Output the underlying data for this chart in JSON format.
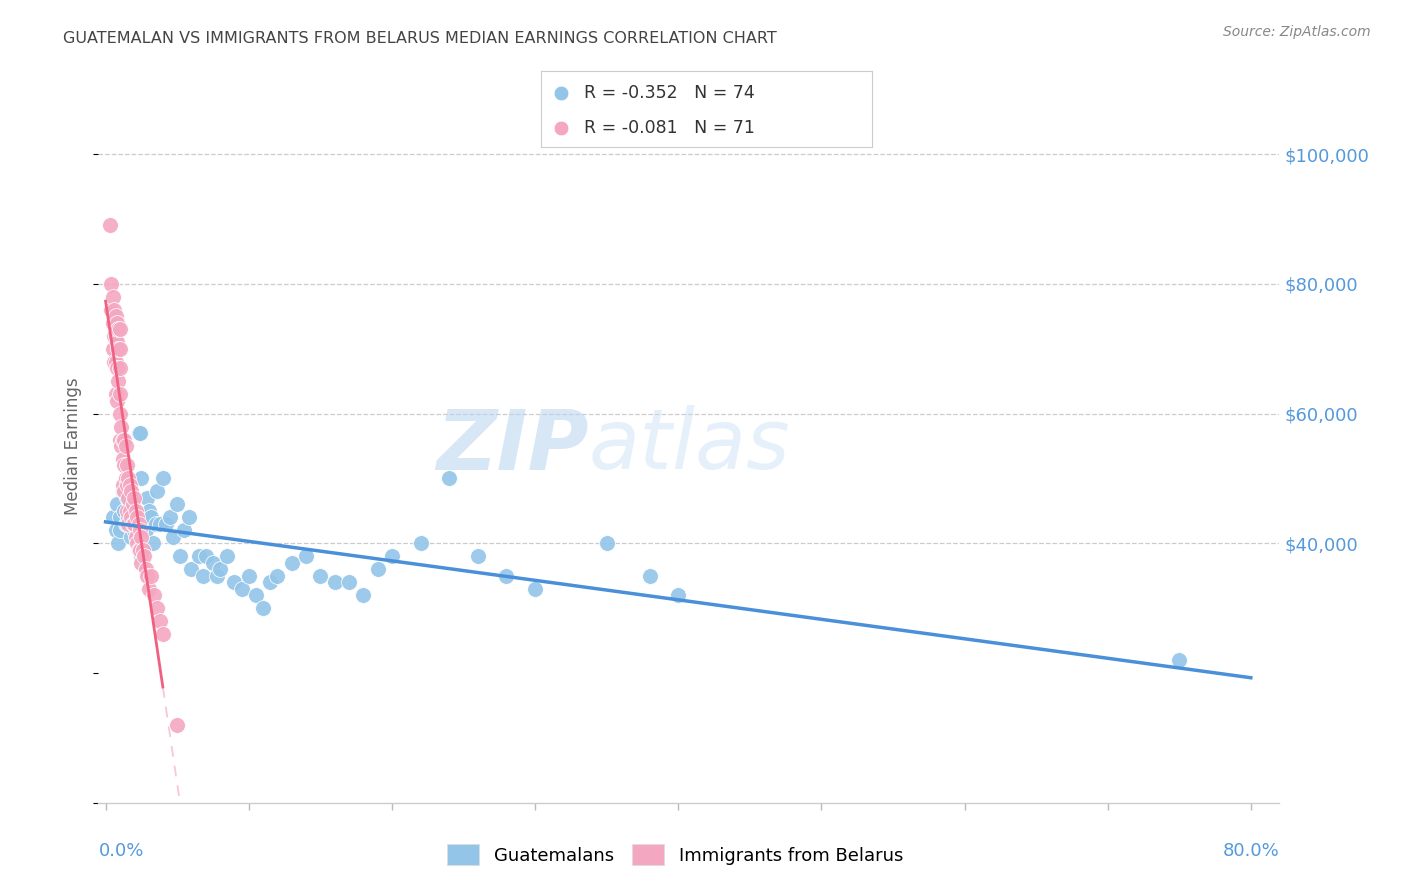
{
  "title": "GUATEMALAN VS IMMIGRANTS FROM BELARUS MEDIAN EARNINGS CORRELATION CHART",
  "source": "Source: ZipAtlas.com",
  "ylabel": "Median Earnings",
  "y_tick_values": [
    40000,
    60000,
    80000,
    100000
  ],
  "ylim": [
    0,
    110000
  ],
  "xlim": [
    -0.005,
    0.82
  ],
  "legend_blue_r": "-0.352",
  "legend_blue_n": "74",
  "legend_pink_r": "-0.081",
  "legend_pink_n": "71",
  "watermark_zip": "ZIP",
  "watermark_atlas": "atlas",
  "background_color": "#ffffff",
  "grid_color": "#cccccc",
  "blue_color": "#92C5E8",
  "pink_color": "#F4A7C0",
  "blue_line_color": "#4A90D9",
  "pink_line_color": "#F06080",
  "title_color": "#444444",
  "source_color": "#888888",
  "axis_label_color": "#5599DD",
  "guatemalans_x": [
    0.005,
    0.007,
    0.008,
    0.009,
    0.01,
    0.01,
    0.012,
    0.013,
    0.014,
    0.015,
    0.015,
    0.016,
    0.017,
    0.018,
    0.018,
    0.02,
    0.02,
    0.021,
    0.022,
    0.022,
    0.023,
    0.024,
    0.024,
    0.025,
    0.025,
    0.027,
    0.028,
    0.029,
    0.03,
    0.032,
    0.033,
    0.035,
    0.036,
    0.038,
    0.04,
    0.042,
    0.045,
    0.047,
    0.05,
    0.052,
    0.055,
    0.058,
    0.06,
    0.065,
    0.068,
    0.07,
    0.075,
    0.078,
    0.08,
    0.085,
    0.09,
    0.095,
    0.1,
    0.105,
    0.11,
    0.115,
    0.12,
    0.13,
    0.14,
    0.15,
    0.16,
    0.17,
    0.18,
    0.19,
    0.2,
    0.22,
    0.24,
    0.26,
    0.28,
    0.3,
    0.35,
    0.38,
    0.4,
    0.75
  ],
  "guatemalans_y": [
    44000,
    42000,
    46000,
    40000,
    44000,
    42000,
    48000,
    45000,
    43000,
    47000,
    43000,
    44000,
    46000,
    43000,
    41000,
    45000,
    42000,
    44000,
    43000,
    41000,
    57000,
    57000,
    43000,
    50000,
    38000,
    44000,
    42000,
    47000,
    45000,
    44000,
    40000,
    43000,
    48000,
    43000,
    50000,
    43000,
    44000,
    41000,
    46000,
    38000,
    42000,
    44000,
    36000,
    38000,
    35000,
    38000,
    37000,
    35000,
    36000,
    38000,
    34000,
    33000,
    35000,
    32000,
    30000,
    34000,
    35000,
    37000,
    38000,
    35000,
    34000,
    34000,
    32000,
    36000,
    38000,
    40000,
    50000,
    38000,
    35000,
    33000,
    40000,
    35000,
    32000,
    22000
  ],
  "belarus_x": [
    0.003,
    0.004,
    0.004,
    0.005,
    0.005,
    0.005,
    0.006,
    0.006,
    0.006,
    0.007,
    0.007,
    0.007,
    0.007,
    0.008,
    0.008,
    0.008,
    0.008,
    0.009,
    0.009,
    0.009,
    0.01,
    0.01,
    0.01,
    0.01,
    0.01,
    0.01,
    0.011,
    0.011,
    0.012,
    0.012,
    0.012,
    0.013,
    0.013,
    0.013,
    0.014,
    0.014,
    0.015,
    0.015,
    0.015,
    0.016,
    0.016,
    0.016,
    0.017,
    0.017,
    0.018,
    0.018,
    0.019,
    0.019,
    0.02,
    0.02,
    0.021,
    0.021,
    0.022,
    0.022,
    0.023,
    0.023,
    0.024,
    0.024,
    0.025,
    0.025,
    0.026,
    0.027,
    0.028,
    0.029,
    0.03,
    0.032,
    0.034,
    0.036,
    0.038,
    0.04,
    0.05
  ],
  "belarus_y": [
    89000,
    80000,
    76000,
    78000,
    74000,
    70000,
    76000,
    72000,
    68000,
    75000,
    72000,
    68000,
    63000,
    74000,
    71000,
    67000,
    62000,
    73000,
    70000,
    65000,
    73000,
    70000,
    67000,
    63000,
    60000,
    56000,
    58000,
    55000,
    56000,
    53000,
    49000,
    56000,
    52000,
    48000,
    55000,
    50000,
    52000,
    49000,
    45000,
    50000,
    47000,
    43000,
    49000,
    45000,
    48000,
    44000,
    46000,
    43000,
    47000,
    43000,
    45000,
    41000,
    44000,
    40000,
    43000,
    39000,
    42000,
    39000,
    41000,
    37000,
    39000,
    38000,
    36000,
    35000,
    33000,
    35000,
    32000,
    30000,
    28000,
    26000,
    12000
  ]
}
